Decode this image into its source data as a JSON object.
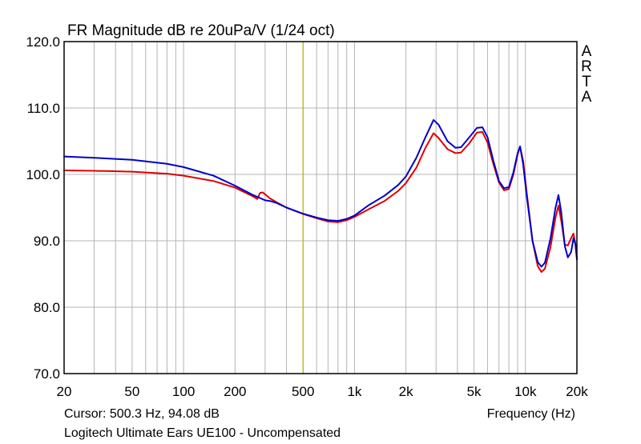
{
  "chart_data": {
    "type": "line",
    "title": "FR Magnitude dB re 20uPa/V (1/24 oct)",
    "xlabel": "Frequency (Hz)",
    "ylabel": "",
    "x_scale": "log",
    "xlim": [
      20,
      20000
    ],
    "ylim": [
      70,
      120
    ],
    "x_ticks": [
      {
        "value": 20,
        "label": "20"
      },
      {
        "value": 50,
        "label": "50"
      },
      {
        "value": 100,
        "label": "100"
      },
      {
        "value": 200,
        "label": "200"
      },
      {
        "value": 500,
        "label": "500"
      },
      {
        "value": 1000,
        "label": "1k"
      },
      {
        "value": 2000,
        "label": "2k"
      },
      {
        "value": 5000,
        "label": "5k"
      },
      {
        "value": 10000,
        "label": "10k"
      },
      {
        "value": 20000,
        "label": "20k"
      }
    ],
    "y_ticks": [
      {
        "value": 120,
        "label": "120.0"
      },
      {
        "value": 110,
        "label": "110.0"
      },
      {
        "value": 100,
        "label": "100.0"
      },
      {
        "value": 90,
        "label": "90.0"
      },
      {
        "value": 80,
        "label": "80.0"
      },
      {
        "value": 70,
        "label": "70.0"
      }
    ],
    "grid": true,
    "cursor": {
      "x": 500.3,
      "y": 94.08,
      "color": "#b8b800"
    },
    "cursor_readout": "Cursor: 500.3 Hz, 94.08 dB",
    "brand_letters": [
      "A",
      "R",
      "T",
      "A"
    ],
    "caption": "Logitech Ultimate Ears UE100 - Uncompensated",
    "series": [
      {
        "color": "#dd0000",
        "points": [
          [
            20,
            100.6
          ],
          [
            30,
            100.55
          ],
          [
            50,
            100.4
          ],
          [
            80,
            100.1
          ],
          [
            100,
            99.8
          ],
          [
            150,
            99.0
          ],
          [
            200,
            98.0
          ],
          [
            250,
            96.8
          ],
          [
            270,
            96.3
          ],
          [
            280,
            97.2
          ],
          [
            290,
            97.3
          ],
          [
            320,
            96.4
          ],
          [
            350,
            95.8
          ],
          [
            400,
            95.0
          ],
          [
            500,
            94.05
          ],
          [
            600,
            93.4
          ],
          [
            700,
            92.9
          ],
          [
            800,
            92.8
          ],
          [
            900,
            93.1
          ],
          [
            1000,
            93.6
          ],
          [
            1200,
            94.7
          ],
          [
            1500,
            96.0
          ],
          [
            1800,
            97.5
          ],
          [
            2000,
            98.7
          ],
          [
            2300,
            101.0
          ],
          [
            2600,
            104.0
          ],
          [
            2900,
            106.2
          ],
          [
            3100,
            105.5
          ],
          [
            3500,
            103.8
          ],
          [
            3900,
            103.2
          ],
          [
            4200,
            103.3
          ],
          [
            4700,
            104.7
          ],
          [
            5200,
            106.3
          ],
          [
            5600,
            106.4
          ],
          [
            6000,
            104.8
          ],
          [
            6500,
            101.5
          ],
          [
            7000,
            98.8
          ],
          [
            7500,
            97.6
          ],
          [
            8000,
            97.8
          ],
          [
            8500,
            100.0
          ],
          [
            9000,
            103.0
          ],
          [
            9300,
            104.2
          ],
          [
            9700,
            102.0
          ],
          [
            10200,
            97.0
          ],
          [
            11000,
            90.0
          ],
          [
            11800,
            86.2
          ],
          [
            12400,
            85.3
          ],
          [
            13000,
            85.8
          ],
          [
            14000,
            89.0
          ],
          [
            15000,
            93.5
          ],
          [
            15600,
            95.3
          ],
          [
            16200,
            93.0
          ],
          [
            17000,
            89.4
          ],
          [
            17700,
            89.3
          ],
          [
            18500,
            90.4
          ],
          [
            19100,
            91.1
          ],
          [
            19600,
            89.5
          ],
          [
            20000,
            87.5
          ]
        ]
      },
      {
        "color": "#0000cc",
        "points": [
          [
            20,
            102.7
          ],
          [
            30,
            102.5
          ],
          [
            50,
            102.2
          ],
          [
            80,
            101.6
          ],
          [
            100,
            101.1
          ],
          [
            150,
            99.8
          ],
          [
            200,
            98.3
          ],
          [
            250,
            97.0
          ],
          [
            300,
            96.1
          ],
          [
            320,
            96.0
          ],
          [
            350,
            95.7
          ],
          [
            400,
            95.0
          ],
          [
            500,
            94.08
          ],
          [
            600,
            93.5
          ],
          [
            700,
            93.1
          ],
          [
            800,
            93.0
          ],
          [
            900,
            93.3
          ],
          [
            1000,
            93.8
          ],
          [
            1200,
            95.3
          ],
          [
            1500,
            96.8
          ],
          [
            1800,
            98.4
          ],
          [
            2000,
            99.7
          ],
          [
            2300,
            102.5
          ],
          [
            2600,
            105.6
          ],
          [
            2900,
            108.2
          ],
          [
            3100,
            107.5
          ],
          [
            3500,
            105.0
          ],
          [
            3900,
            104.0
          ],
          [
            4200,
            104.1
          ],
          [
            4700,
            105.6
          ],
          [
            5200,
            107.0
          ],
          [
            5600,
            107.1
          ],
          [
            6000,
            105.6
          ],
          [
            6500,
            102.0
          ],
          [
            7000,
            99.0
          ],
          [
            7500,
            97.9
          ],
          [
            8000,
            98.1
          ],
          [
            8500,
            100.3
          ],
          [
            9000,
            103.2
          ],
          [
            9300,
            104.2
          ],
          [
            9700,
            101.5
          ],
          [
            10200,
            96.5
          ],
          [
            11000,
            90.0
          ],
          [
            11800,
            86.8
          ],
          [
            12400,
            86.1
          ],
          [
            13000,
            86.7
          ],
          [
            14000,
            90.3
          ],
          [
            15000,
            95.0
          ],
          [
            15600,
            96.9
          ],
          [
            16200,
            94.3
          ],
          [
            17000,
            89.2
          ],
          [
            17700,
            87.5
          ],
          [
            18500,
            88.3
          ],
          [
            19100,
            90.4
          ],
          [
            19600,
            89.5
          ],
          [
            20000,
            87.2
          ]
        ]
      }
    ]
  }
}
